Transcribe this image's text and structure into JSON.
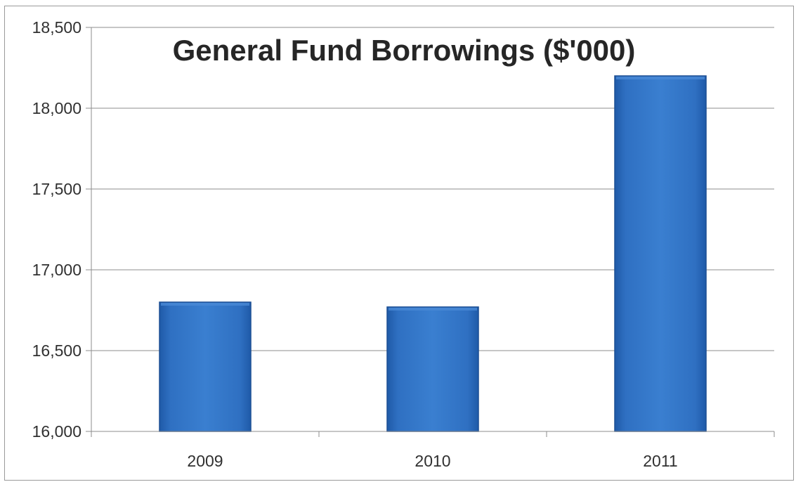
{
  "chart_data": {
    "type": "bar",
    "title": "General Fund Borrowings ($'000)",
    "xlabel": "",
    "ylabel": "",
    "categories": [
      "2009",
      "2010",
      "2011"
    ],
    "values": [
      16800,
      16770,
      18200
    ],
    "ylim": [
      16000,
      18500
    ],
    "yticks": [
      16000,
      16500,
      17000,
      17500,
      18000,
      18500
    ],
    "ytick_labels": [
      "16,000",
      "16,500",
      "17,000",
      "17,500",
      "18,000",
      "18,500"
    ],
    "grid": true,
    "legend": "none",
    "colors": {
      "bar": "#2e6fc0",
      "bar_dark": "#1c4f94",
      "bar_light": "#4a8ad6"
    }
  }
}
